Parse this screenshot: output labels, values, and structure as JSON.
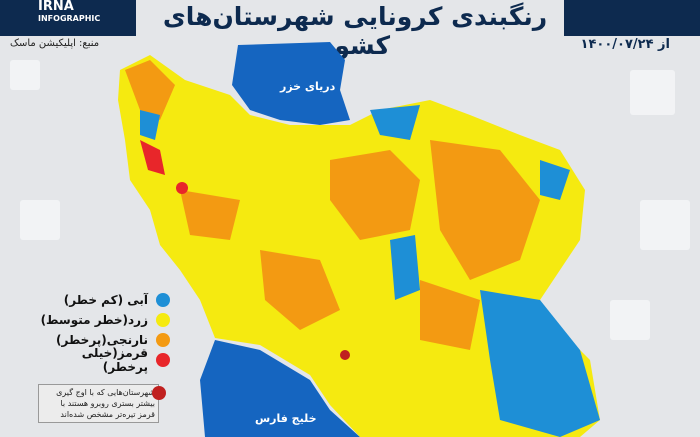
{
  "header": {
    "logo_text": "IRNA",
    "logo_sub": "INFOGRAPHIC",
    "title": "رنگبندی کرونایی شهرستان‌های کشور",
    "source": "منبع: اپلیکیشن ماسک",
    "date": "از ۱۴۰۰/۰۷/۲۴"
  },
  "map": {
    "caspian_label": "دریای خزر",
    "gulf_label": "خلیج فارس"
  },
  "legend": {
    "items": [
      {
        "label": "آبی (کم خطر)",
        "color": "#1e8fd6"
      },
      {
        "label": "زرد(خطر متوسط)",
        "color": "#f5ea10"
      },
      {
        "label": "نارنجی(پرخطر)",
        "color": "#f39a12"
      },
      {
        "label": "قرمز(خیلی پرخطر)",
        "color": "#e8262a"
      }
    ],
    "note": {
      "text": "شهرستان‌هایی که با اوج گیری بیشتر بستری روبرو هستند با قرمز تیره‌تر مشخص شده‌اند",
      "color": "#c0201f"
    }
  },
  "colors": {
    "navy": "#0d2a4f",
    "sea": "#1565c0"
  }
}
